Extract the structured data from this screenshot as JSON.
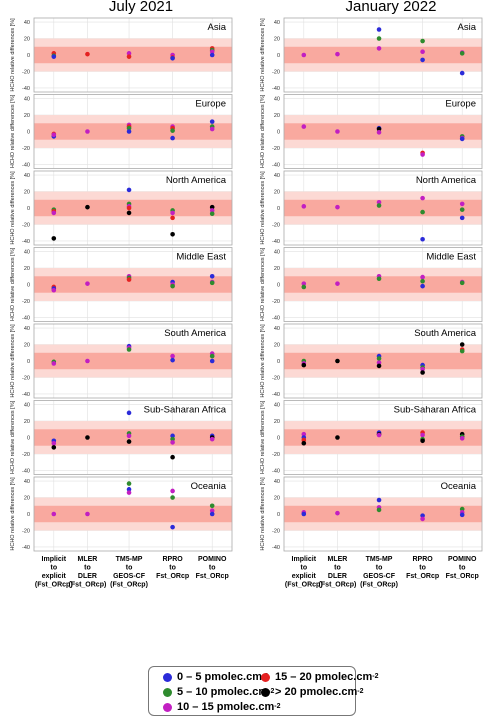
{
  "column_titles": [
    "July 2021",
    "January 2022"
  ],
  "y_axis_label": "HCHO relative differences [%]",
  "x_tick_labels": [
    [
      "Implicit",
      "to",
      "explicit",
      "(Fst_ORcp)"
    ],
    [
      "MLER",
      "to",
      "DLER",
      "(Fst_ORcp)"
    ],
    [
      "TM5-MP",
      "to",
      "GEOS-CF",
      "(Fst_ORcp)"
    ],
    [
      "RPRO",
      "to",
      "Fst_ORcp"
    ],
    [
      "POMINO",
      "to",
      "Fst_ORcp"
    ]
  ],
  "legend": {
    "items": [
      {
        "text": "0 – 5 pmolec.cm",
        "sup": "-2",
        "color": "#2b2bd9"
      },
      {
        "text": "15 – 20 pmolec.cm",
        "sup": "-2",
        "color": "#e52121"
      },
      {
        "text": "5 – 10 pmolec.cm",
        "sup": "-2",
        "color": "#2e8b2e"
      },
      {
        "text": "> 20 pmolec.cm",
        "sup": "-2",
        "color": "#000000"
      },
      {
        "text": "10 – 15 pmolec.cm",
        "sup": "-2",
        "color": "#c21fc2"
      }
    ]
  },
  "colors": {
    "band_outer": "#fcd9d4",
    "band_inner": "#f9a99f",
    "grid": "#e0e0e0",
    "panel_border": "#aaaaaa"
  },
  "chart_data": {
    "type": "scatter",
    "y_ticks": [
      -40,
      -20,
      0,
      20,
      40
    ],
    "ylim": [
      -45,
      45
    ],
    "bands": {
      "inner": [
        -10,
        10
      ],
      "outer": [
        -20,
        20
      ]
    },
    "category_order": [
      "Implicit to explicit (Fst_ORcp)",
      "MLER to DLER (Fst_ORcp)",
      "TM5-MP to GEOS-CF (Fst_ORcp)",
      "RPRO to Fst_ORcp",
      "POMINO to Fst_ORcp"
    ],
    "bin_codes": {
      "b": "0 – 5",
      "g": "5 – 10",
      "m": "10 – 15",
      "r": "15 – 20",
      "k": "> 20"
    },
    "panels": [
      {
        "column": "July 2021",
        "region": "Asia",
        "points": [
          [
            0,
            "r",
            2
          ],
          [
            0,
            "g",
            -1
          ],
          [
            0,
            "b",
            -2
          ],
          [
            1,
            "r",
            1
          ],
          [
            2,
            "m",
            2
          ],
          [
            2,
            "r",
            -2
          ],
          [
            3,
            "m",
            0
          ],
          [
            3,
            "r",
            -3
          ],
          [
            3,
            "b",
            -4
          ],
          [
            4,
            "r",
            8
          ],
          [
            4,
            "g",
            6
          ],
          [
            4,
            "m",
            4
          ],
          [
            4,
            "b",
            0
          ]
        ]
      },
      {
        "column": "January 2022",
        "region": "Asia",
        "points": [
          [
            0,
            "m",
            0
          ],
          [
            1,
            "m",
            1
          ],
          [
            2,
            "b",
            31
          ],
          [
            2,
            "g",
            20
          ],
          [
            2,
            "m",
            8
          ],
          [
            3,
            "g",
            17
          ],
          [
            3,
            "m",
            4
          ],
          [
            3,
            "b",
            -6
          ],
          [
            4,
            "m",
            3
          ],
          [
            4,
            "g",
            2
          ],
          [
            4,
            "b",
            -22
          ]
        ]
      },
      {
        "column": "July 2021",
        "region": "Europe",
        "points": [
          [
            0,
            "r",
            -3
          ],
          [
            0,
            "b",
            -6
          ],
          [
            0,
            "m",
            -4
          ],
          [
            1,
            "m",
            0
          ],
          [
            2,
            "m",
            8
          ],
          [
            2,
            "r",
            6
          ],
          [
            2,
            "g",
            4
          ],
          [
            2,
            "b",
            0
          ],
          [
            3,
            "m",
            6
          ],
          [
            3,
            "r",
            4
          ],
          [
            3,
            "g",
            1
          ],
          [
            3,
            "b",
            -8
          ],
          [
            4,
            "b",
            12
          ],
          [
            4,
            "g",
            6
          ],
          [
            4,
            "m",
            3
          ]
        ]
      },
      {
        "column": "January 2022",
        "region": "Europe",
        "points": [
          [
            0,
            "m",
            6
          ],
          [
            1,
            "m",
            0
          ],
          [
            2,
            "b",
            4
          ],
          [
            2,
            "k",
            3
          ],
          [
            2,
            "m",
            -1
          ],
          [
            3,
            "r",
            -26
          ],
          [
            3,
            "m",
            -28
          ],
          [
            4,
            "g",
            -6
          ],
          [
            4,
            "m",
            -8
          ],
          [
            4,
            "b",
            -9
          ]
        ]
      },
      {
        "column": "July 2021",
        "region": "North America",
        "points": [
          [
            0,
            "g",
            -2
          ],
          [
            0,
            "r",
            -4
          ],
          [
            0,
            "m",
            -6
          ],
          [
            0,
            "k",
            -37
          ],
          [
            1,
            "k",
            1
          ],
          [
            2,
            "b",
            22
          ],
          [
            2,
            "g",
            5
          ],
          [
            2,
            "m",
            2
          ],
          [
            2,
            "r",
            0
          ],
          [
            2,
            "k",
            -6
          ],
          [
            3,
            "g",
            -3
          ],
          [
            3,
            "m",
            -6
          ],
          [
            3,
            "r",
            -12
          ],
          [
            3,
            "k",
            -32
          ],
          [
            4,
            "k",
            1
          ],
          [
            4,
            "m",
            -3
          ],
          [
            4,
            "g",
            -7
          ]
        ]
      },
      {
        "column": "January 2022",
        "region": "North America",
        "points": [
          [
            0,
            "m",
            2
          ],
          [
            1,
            "m",
            1
          ],
          [
            2,
            "m",
            7
          ],
          [
            2,
            "g",
            3
          ],
          [
            3,
            "m",
            12
          ],
          [
            3,
            "g",
            -5
          ],
          [
            3,
            "b",
            -38
          ],
          [
            4,
            "m",
            5
          ],
          [
            4,
            "g",
            -2
          ],
          [
            4,
            "b",
            -12
          ]
        ]
      },
      {
        "column": "July 2021",
        "region": "Middle East",
        "points": [
          [
            0,
            "r",
            -3
          ],
          [
            0,
            "b",
            -5
          ],
          [
            0,
            "m",
            -7
          ],
          [
            1,
            "m",
            1
          ],
          [
            2,
            "m",
            10
          ],
          [
            2,
            "g",
            8
          ],
          [
            2,
            "r",
            6
          ],
          [
            3,
            "b",
            3
          ],
          [
            3,
            "m",
            0
          ],
          [
            3,
            "g",
            -2
          ],
          [
            4,
            "b",
            10
          ],
          [
            4,
            "m",
            3
          ],
          [
            4,
            "g",
            2
          ]
        ]
      },
      {
        "column": "January 2022",
        "region": "Middle East",
        "points": [
          [
            0,
            "m",
            1
          ],
          [
            0,
            "g",
            -3
          ],
          [
            1,
            "m",
            1
          ],
          [
            2,
            "m",
            10
          ],
          [
            2,
            "g",
            7
          ],
          [
            3,
            "m",
            9
          ],
          [
            3,
            "g",
            4
          ],
          [
            3,
            "b",
            -2
          ],
          [
            4,
            "m",
            3
          ],
          [
            4,
            "g",
            2
          ]
        ]
      },
      {
        "column": "July 2021",
        "region": "South America",
        "points": [
          [
            0,
            "g",
            -1
          ],
          [
            0,
            "m",
            -3
          ],
          [
            1,
            "m",
            0
          ],
          [
            2,
            "b",
            18
          ],
          [
            2,
            "m",
            16
          ],
          [
            2,
            "g",
            14
          ],
          [
            3,
            "m",
            6
          ],
          [
            3,
            "b",
            1
          ],
          [
            4,
            "m",
            9
          ],
          [
            4,
            "g",
            6
          ],
          [
            4,
            "b",
            0
          ]
        ]
      },
      {
        "column": "January 2022",
        "region": "South America",
        "points": [
          [
            0,
            "g",
            0
          ],
          [
            0,
            "m",
            -3
          ],
          [
            0,
            "k",
            -5
          ],
          [
            1,
            "k",
            0
          ],
          [
            2,
            "b",
            6
          ],
          [
            2,
            "g",
            3
          ],
          [
            2,
            "m",
            -2
          ],
          [
            2,
            "k",
            -6
          ],
          [
            3,
            "b",
            -5
          ],
          [
            3,
            "g",
            -8
          ],
          [
            3,
            "m",
            -10
          ],
          [
            3,
            "k",
            -14
          ],
          [
            4,
            "k",
            20
          ],
          [
            4,
            "r",
            14
          ],
          [
            4,
            "g",
            12
          ]
        ]
      },
      {
        "column": "July 2021",
        "region": "Sub-Saharan Africa",
        "points": [
          [
            0,
            "b",
            -4
          ],
          [
            0,
            "m",
            -7
          ],
          [
            0,
            "k",
            -12
          ],
          [
            1,
            "k",
            0
          ],
          [
            2,
            "b",
            30
          ],
          [
            2,
            "g",
            5
          ],
          [
            2,
            "m",
            2
          ],
          [
            2,
            "k",
            -5
          ],
          [
            3,
            "b",
            2
          ],
          [
            3,
            "g",
            -2
          ],
          [
            3,
            "m",
            -6
          ],
          [
            3,
            "k",
            -24
          ],
          [
            4,
            "b",
            2
          ],
          [
            4,
            "k",
            0
          ],
          [
            4,
            "m",
            -2
          ]
        ]
      },
      {
        "column": "January 2022",
        "region": "Sub-Saharan Africa",
        "points": [
          [
            0,
            "m",
            4
          ],
          [
            0,
            "b",
            0
          ],
          [
            0,
            "r",
            -3
          ],
          [
            0,
            "k",
            -7
          ],
          [
            1,
            "k",
            0
          ],
          [
            2,
            "b",
            6
          ],
          [
            2,
            "k",
            4
          ],
          [
            2,
            "m",
            3
          ],
          [
            3,
            "r",
            6
          ],
          [
            3,
            "m",
            3
          ],
          [
            3,
            "g",
            -2
          ],
          [
            3,
            "k",
            -4
          ],
          [
            4,
            "k",
            4
          ],
          [
            4,
            "g",
            1
          ],
          [
            4,
            "m",
            -1
          ]
        ]
      },
      {
        "column": "July 2021",
        "region": "Oceania",
        "points": [
          [
            0,
            "m",
            0
          ],
          [
            1,
            "m",
            0
          ],
          [
            2,
            "g",
            37
          ],
          [
            2,
            "b",
            30
          ],
          [
            2,
            "m",
            26
          ],
          [
            3,
            "m",
            28
          ],
          [
            3,
            "g",
            20
          ],
          [
            3,
            "b",
            -16
          ],
          [
            4,
            "g",
            10
          ],
          [
            4,
            "m",
            4
          ],
          [
            4,
            "b",
            0
          ]
        ]
      },
      {
        "column": "January 2022",
        "region": "Oceania",
        "points": [
          [
            0,
            "m",
            2
          ],
          [
            0,
            "b",
            0
          ],
          [
            1,
            "m",
            1
          ],
          [
            2,
            "b",
            17
          ],
          [
            2,
            "m",
            8
          ],
          [
            2,
            "g",
            5
          ],
          [
            3,
            "b",
            -2
          ],
          [
            3,
            "m",
            -6
          ],
          [
            4,
            "g",
            6
          ],
          [
            4,
            "m",
            2
          ],
          [
            4,
            "b",
            -1
          ]
        ]
      }
    ]
  }
}
